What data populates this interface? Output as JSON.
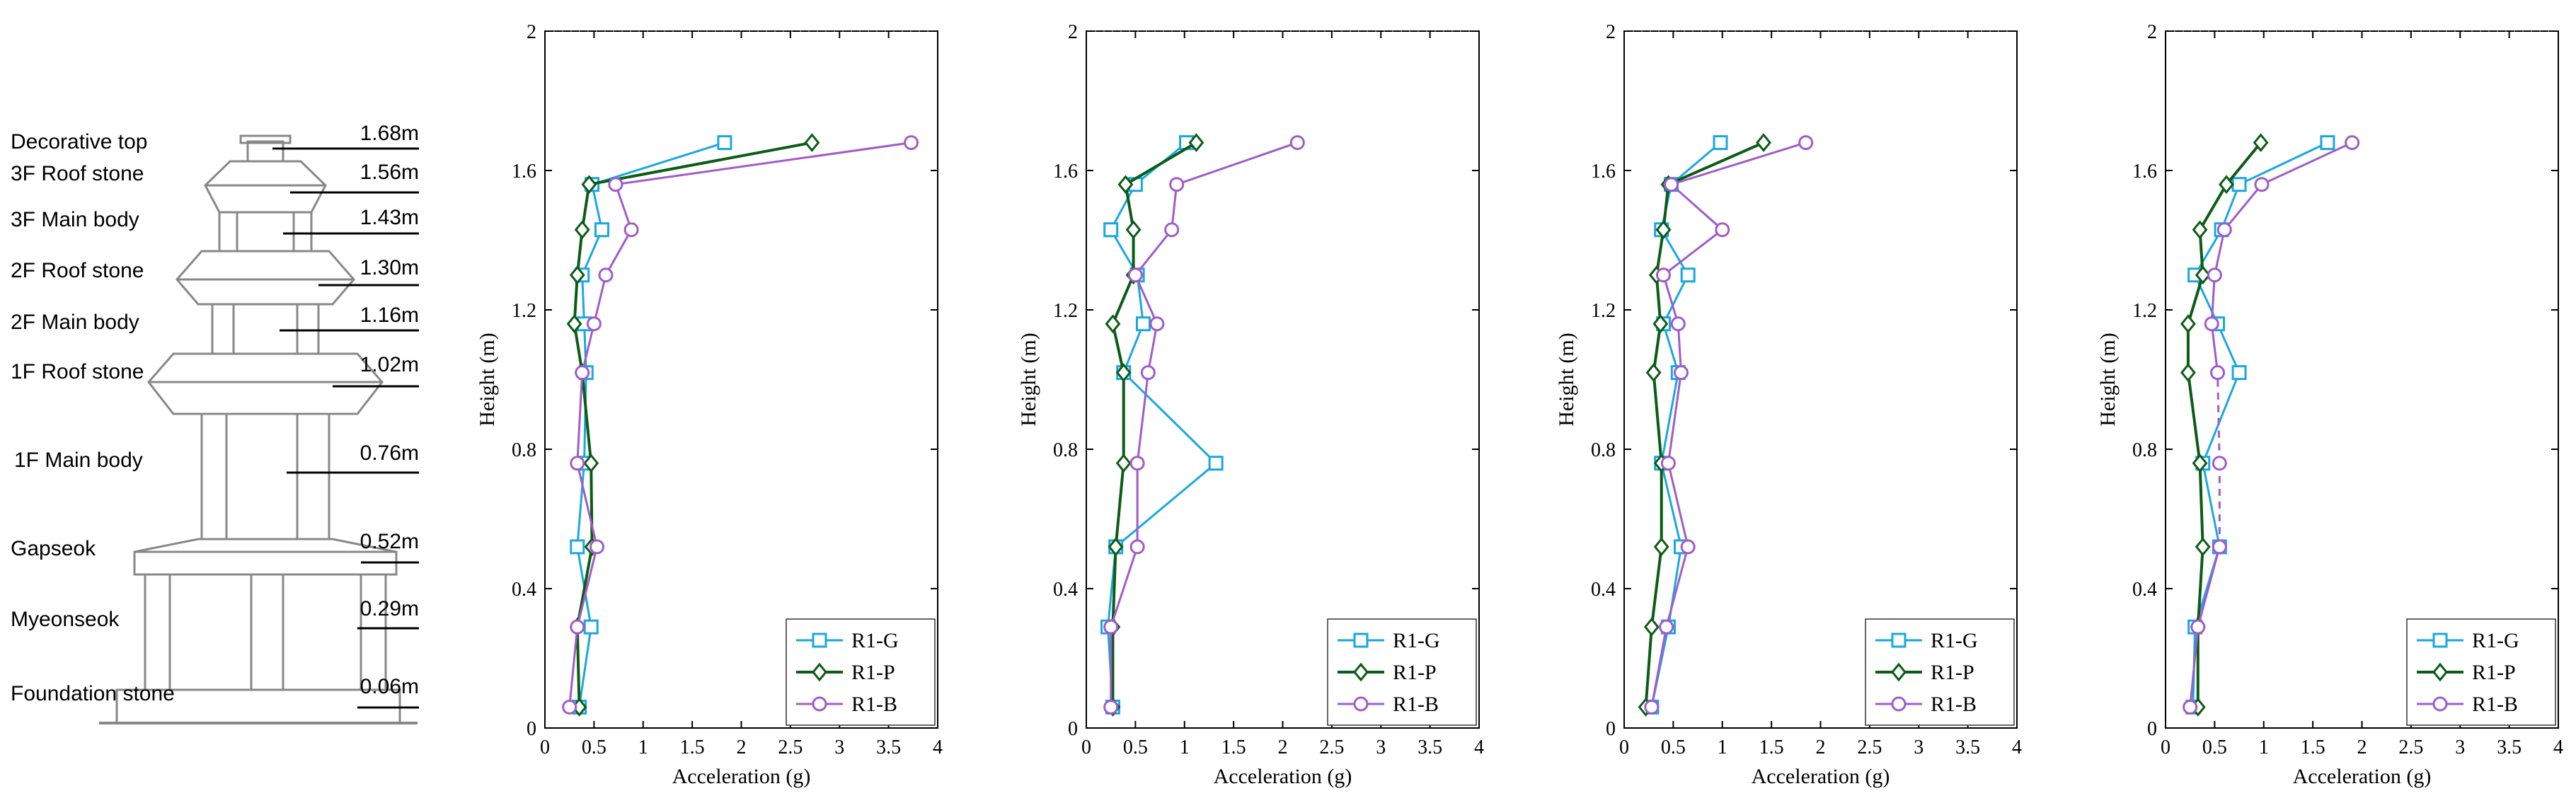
{
  "tower": {
    "components": [
      {
        "label": "Decorative top",
        "height": "1.68m",
        "y": 1.68
      },
      {
        "label": "3F Roof stone",
        "height": "1.56m",
        "y": 1.56
      },
      {
        "label": "3F Main body",
        "height": "1.43m",
        "y": 1.43
      },
      {
        "label": "2F Roof stone",
        "height": "1.30m",
        "y": 1.3
      },
      {
        "label": "2F Main body",
        "height": "1.16m",
        "y": 1.16
      },
      {
        "label": "1F Roof stone",
        "height": "1.02m",
        "y": 1.02
      },
      {
        "label": "1F Main body",
        "height": "0.76m",
        "y": 0.76
      },
      {
        "label": "Gapseok",
        "height": "0.52m",
        "y": 0.52
      },
      {
        "label": "Myeonseok",
        "height": "0.29m",
        "y": 0.29
      },
      {
        "label": "Foundation stone",
        "height": "0.06m",
        "y": 0.06
      }
    ]
  },
  "colors": {
    "R1-G": "#1aa7e0",
    "R1-P": "#0d5c16",
    "R1-B": "#a05cc8",
    "axis": "#000000",
    "tower": "#888888"
  },
  "chart_data": [
    {
      "type": "line",
      "xlabel": "Acceleration (g)",
      "ylabel": "Height (m)",
      "xlim": [
        0,
        4
      ],
      "ylim": [
        0,
        2
      ],
      "xticks": [
        "0",
        "0.5",
        "1",
        "1.5",
        "2",
        "2.5",
        "3",
        "3.5",
        "4"
      ],
      "yticks": [
        "0",
        "0.4",
        "0.8",
        "1.2",
        "1.6",
        "2"
      ],
      "legend_position": "bottom-right",
      "y": [
        0.06,
        0.29,
        0.52,
        0.76,
        1.02,
        1.16,
        1.3,
        1.43,
        1.56,
        1.68
      ],
      "series": [
        {
          "name": "R1-G",
          "marker": "square",
          "x": [
            0.35,
            0.47,
            0.33,
            0.4,
            0.42,
            0.4,
            0.38,
            0.58,
            0.48,
            1.83
          ]
        },
        {
          "name": "R1-P",
          "marker": "diamond",
          "x": [
            0.35,
            0.33,
            0.48,
            0.47,
            0.38,
            0.3,
            0.33,
            0.38,
            0.45,
            2.72
          ]
        },
        {
          "name": "R1-B",
          "marker": "circle",
          "x": [
            0.25,
            0.33,
            0.53,
            0.33,
            0.38,
            0.5,
            0.62,
            0.88,
            0.72,
            3.73
          ]
        }
      ]
    },
    {
      "type": "line",
      "xlabel": "Acceleration (g)",
      "ylabel": "Height (m)",
      "xlim": [
        0,
        4
      ],
      "ylim": [
        0,
        2
      ],
      "xticks": [
        "0",
        "0.5",
        "1",
        "1.5",
        "2",
        "2.5",
        "3",
        "3.5",
        "4"
      ],
      "yticks": [
        "0",
        "0.4",
        "0.8",
        "1.2",
        "1.6",
        "2"
      ],
      "legend_position": "bottom-right",
      "y": [
        0.06,
        0.29,
        0.52,
        0.76,
        1.02,
        1.16,
        1.3,
        1.43,
        1.56,
        1.68
      ],
      "series": [
        {
          "name": "R1-G",
          "marker": "square",
          "x": [
            0.27,
            0.22,
            0.3,
            1.32,
            0.38,
            0.58,
            0.52,
            0.25,
            0.5,
            1.02
          ]
        },
        {
          "name": "R1-P",
          "marker": "diamond",
          "x": [
            0.27,
            0.27,
            0.3,
            0.38,
            0.38,
            0.27,
            0.48,
            0.48,
            0.4,
            1.12
          ]
        },
        {
          "name": "R1-B",
          "marker": "circle",
          "x": [
            0.25,
            0.25,
            0.52,
            0.52,
            0.63,
            0.72,
            0.5,
            0.87,
            0.92,
            2.15
          ]
        }
      ]
    },
    {
      "type": "line",
      "xlabel": "Acceleration (g)",
      "ylabel": "Height (m)",
      "xlim": [
        0,
        4
      ],
      "ylim": [
        0,
        2
      ],
      "xticks": [
        "0",
        "0.5",
        "1",
        "1.5",
        "2",
        "2.5",
        "3",
        "3.5",
        "4"
      ],
      "yticks": [
        "0",
        "0.4",
        "0.8",
        "1.2",
        "1.6",
        "2"
      ],
      "legend_position": "bottom-right",
      "y": [
        0.06,
        0.29,
        0.52,
        0.76,
        1.02,
        1.16,
        1.3,
        1.43,
        1.56,
        1.68
      ],
      "series": [
        {
          "name": "R1-G",
          "marker": "square",
          "x": [
            0.28,
            0.45,
            0.58,
            0.38,
            0.55,
            0.4,
            0.65,
            0.38,
            0.48,
            0.98
          ]
        },
        {
          "name": "R1-P",
          "marker": "diamond",
          "x": [
            0.22,
            0.28,
            0.38,
            0.38,
            0.3,
            0.37,
            0.33,
            0.4,
            0.45,
            1.42
          ]
        },
        {
          "name": "R1-B",
          "marker": "circle",
          "x": [
            0.28,
            0.43,
            0.65,
            0.45,
            0.58,
            0.55,
            0.4,
            1.0,
            0.48,
            1.85
          ]
        }
      ]
    },
    {
      "type": "line",
      "xlabel": "Acceleration (g)",
      "ylabel": "Height (m)",
      "xlim": [
        0,
        4
      ],
      "ylim": [
        0,
        2
      ],
      "xticks": [
        "0",
        "0.5",
        "1",
        "1.5",
        "2",
        "2.5",
        "3",
        "3.5",
        "4"
      ],
      "yticks": [
        "0",
        "0.4",
        "0.8",
        "1.2",
        "1.6",
        "2"
      ],
      "legend_position": "bottom-right",
      "y": [
        0.06,
        0.29,
        0.52,
        0.76,
        1.02,
        1.16,
        1.3,
        1.43,
        1.56,
        1.68
      ],
      "series": [
        {
          "name": "R1-G",
          "marker": "square",
          "x": [
            0.28,
            0.3,
            0.55,
            0.38,
            0.75,
            0.53,
            0.3,
            0.57,
            0.75,
            1.65
          ]
        },
        {
          "name": "R1-P",
          "marker": "diamond",
          "x": [
            0.33,
            0.33,
            0.38,
            0.35,
            0.23,
            0.23,
            0.38,
            0.35,
            0.62,
            0.97
          ]
        },
        {
          "name": "R1-B",
          "marker": "circle",
          "x": [
            0.25,
            0.33,
            0.55,
            0.55,
            0.53,
            0.47,
            0.5,
            0.6,
            0.98,
            1.9
          ]
        }
      ]
    }
  ]
}
